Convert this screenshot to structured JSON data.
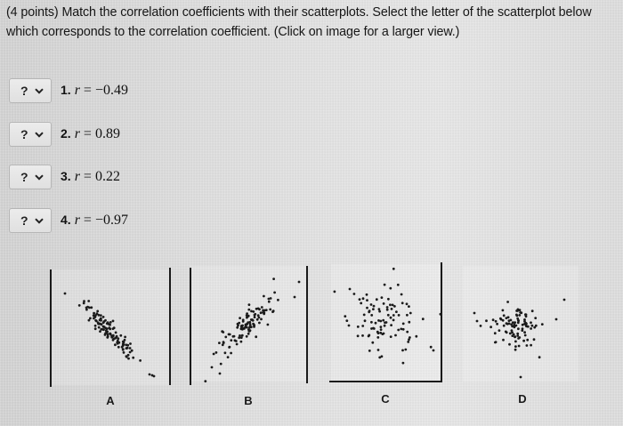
{
  "prompt": {
    "text": "(4 points) Match the correlation coefficients with their scatterplots. Select the letter of the scatterplot below which corresponds to the correlation coefficient. (Click on image for a larger view.)"
  },
  "questions": [
    {
      "number": "1.",
      "variable": "r",
      "equals": " = ",
      "value": "−0.49",
      "selected": "?"
    },
    {
      "number": "2.",
      "variable": "r",
      "equals": " = ",
      "value": "0.89",
      "selected": "?"
    },
    {
      "number": "3.",
      "variable": "r",
      "equals": " = ",
      "value": "0.22",
      "selected": "?"
    },
    {
      "number": "4.",
      "variable": "r",
      "equals": " = ",
      "value": "−0.97",
      "selected": "?"
    }
  ],
  "dropdown_icon": "chevron-down-icon",
  "scatterplots": [
    {
      "letter": "A",
      "trend": "strong negative"
    },
    {
      "letter": "B",
      "trend": "strong positive"
    },
    {
      "letter": "C",
      "trend": "moderate negative"
    },
    {
      "letter": "D",
      "trend": "weak positive"
    }
  ],
  "colors": {
    "background": "#dedede",
    "text": "#111111",
    "dot": "#1a1a1a",
    "select_border": "#b5b5b5"
  }
}
